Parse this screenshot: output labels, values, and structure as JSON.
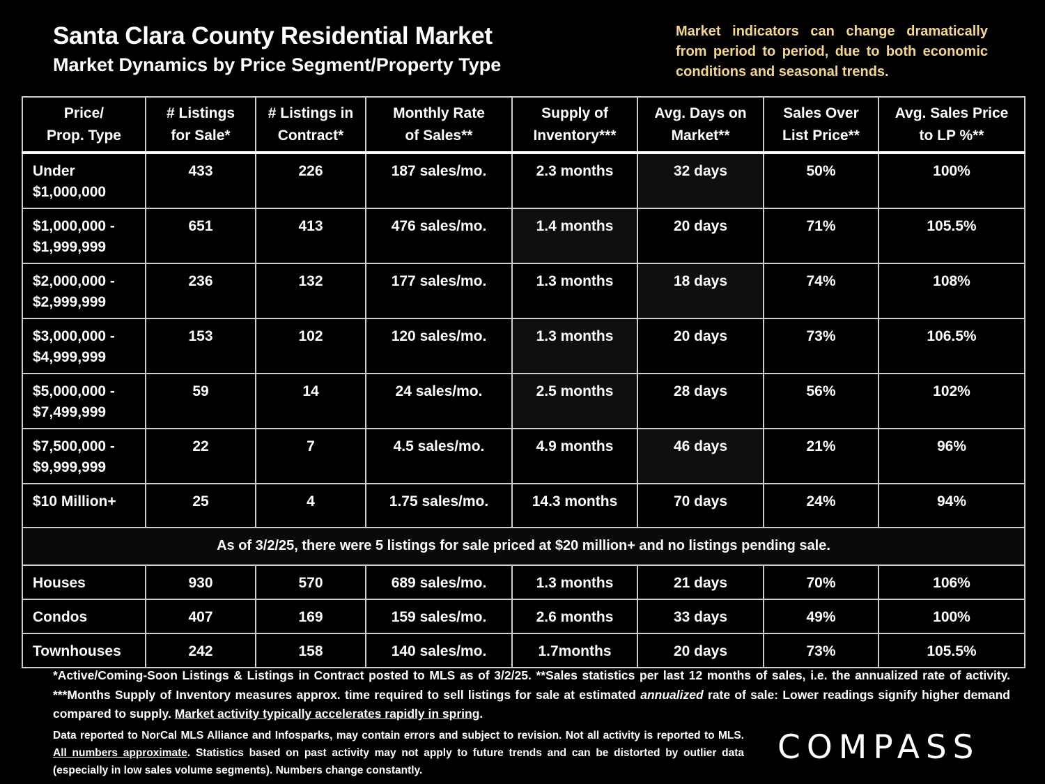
{
  "header": {
    "title": "Santa Clara County Residential Market",
    "subtitle": "Market Dynamics by Price Segment/Property Type",
    "note": "Market indicators can change dramatically from period to period, due to both economic conditions and seasonal trends."
  },
  "table": {
    "columns": {
      "c0": [
        "Price/",
        "Prop. Type"
      ],
      "c1": [
        "# Listings",
        "for Sale*"
      ],
      "c2": [
        "# Listings in",
        "Contract*"
      ],
      "c3": [
        "Monthly Rate",
        "of Sales**"
      ],
      "c4": [
        "Supply of",
        "Inventory***"
      ],
      "c5": [
        "Avg. Days on",
        "Market**"
      ],
      "c6": [
        "Sales Over",
        "List Price**"
      ],
      "c7": [
        "Avg. Sales Price",
        "to LP %**"
      ]
    },
    "segments": [
      {
        "label": [
          "Under",
          "$1,000,000"
        ],
        "listings": "433",
        "contract": "226",
        "rate": "187 sales/mo.",
        "supply": "2.3 months",
        "days": "32 days",
        "over": "50%",
        "price_lp": "100%"
      },
      {
        "label": [
          "$1,000,000 -",
          "$1,999,999"
        ],
        "listings": "651",
        "contract": "413",
        "rate": "476 sales/mo.",
        "supply": "1.4 months",
        "days": "20 days",
        "over": "71%",
        "price_lp": "105.5%"
      },
      {
        "label": [
          "$2,000,000 -",
          "$2,999,999"
        ],
        "listings": "236",
        "contract": "132",
        "rate": "177 sales/mo.",
        "supply": "1.3 months",
        "days": "18 days",
        "over": "74%",
        "price_lp": "108%"
      },
      {
        "label": [
          "$3,000,000 -",
          "$4,999,999"
        ],
        "listings": "153",
        "contract": "102",
        "rate": "120 sales/mo.",
        "supply": "1.3 months",
        "days": "20 days",
        "over": "73%",
        "price_lp": "106.5%"
      },
      {
        "label": [
          "$5,000,000 -",
          "$7,499,999"
        ],
        "listings": "59",
        "contract": "14",
        "rate": "24 sales/mo.",
        "supply": "2.5 months",
        "days": "28 days",
        "over": "56%",
        "price_lp": "102%"
      },
      {
        "label": [
          "$7,500,000 -",
          "$9,999,999"
        ],
        "listings": "22",
        "contract": "7",
        "rate": "4.5 sales/mo.",
        "supply": "4.9 months",
        "days": "46 days",
        "over": "21%",
        "price_lp": "96%"
      },
      {
        "label": [
          "$10 Million+",
          ""
        ],
        "listings": "25",
        "contract": "4",
        "rate": "1.75 sales/mo.",
        "supply": "14.3 months",
        "days": "70 days",
        "over": "24%",
        "price_lp": "94%"
      }
    ],
    "middle_note": "As of 3/2/25, there were 5 listings for sale priced at $20 million+ and no listings pending sale.",
    "types": [
      {
        "label": "Houses",
        "listings": "930",
        "contract": "570",
        "rate": "689 sales/mo.",
        "supply": "1.3 months",
        "days": "21 days",
        "over": "70%",
        "price_lp": "106%"
      },
      {
        "label": "Condos",
        "listings": "407",
        "contract": "169",
        "rate": "159 sales/mo.",
        "supply": "2.6 months",
        "days": "33 days",
        "over": "49%",
        "price_lp": "100%"
      },
      {
        "label": "Townhouses",
        "listings": "242",
        "contract": "158",
        "rate": "140 sales/mo.",
        "supply": "1.7months",
        "days": "20 days",
        "over": "73%",
        "price_lp": "105.5%"
      }
    ]
  },
  "footnote": {
    "p1_a": "*Active/Coming-Soon Listings & Listings in Contract posted to MLS as of 3/2/25. **Sales statistics per last 12 months of sales, i.e. the annualized rate of activity.  ***Months Supply of Inventory measures approx. time required to sell listings for sale at estimated ",
    "p1_italic": "annualized",
    "p1_b": " rate of sale: Lower readings signify higher demand compared to supply. ",
    "p1_underline": "Market activity typically accelerates rapidly in spring",
    "p1_end": ".",
    "p2_a": "Data reported to NorCal MLS Alliance and Infosparks, may contain errors and subject to revision.  Not all activity is reported to MLS. ",
    "p2_underline": "All numbers approximate",
    "p2_b": ". Statistics based on past activity may not apply to future trends and can be distorted by outlier data (especially in low sales volume segments). Numbers change constantly."
  },
  "logo": "COMPASS"
}
